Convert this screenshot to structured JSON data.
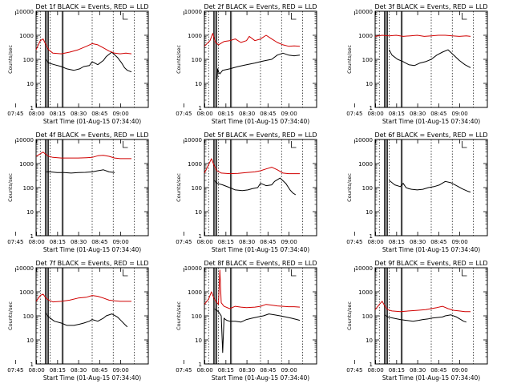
{
  "chart_data": [
    {
      "type": "line",
      "title": "Det 1f BLACK = Events, RED = LLD",
      "xlabel": "Start Time (01-Aug-15 07:34:40)",
      "ylabel": "Counts/sec",
      "xticks": [
        "07:45",
        "08:00",
        "08:15",
        "08:30",
        "08:45",
        "09:00"
      ],
      "yticks": [
        "1",
        "10",
        "100",
        "1000",
        "10000"
      ],
      "ylim": [
        1,
        10000
      ],
      "yscale": "log",
      "series": [
        {
          "name": "BLACK",
          "color": "#000000",
          "x": [
            7,
            9,
            13,
            18,
            22,
            27,
            31,
            34,
            38,
            40,
            44,
            48,
            50,
            54,
            58,
            61,
            63,
            65,
            68
          ],
          "y": [
            100,
            70,
            60,
            50,
            40,
            35,
            40,
            50,
            55,
            80,
            60,
            90,
            130,
            200,
            120,
            70,
            45,
            35,
            30
          ]
        },
        {
          "name": "RED",
          "color": "#d00000",
          "x": [
            0,
            3,
            5,
            7,
            9,
            12,
            18,
            24,
            30,
            36,
            40,
            44,
            48,
            52,
            56,
            60,
            64,
            68
          ],
          "y": [
            250,
            600,
            700,
            400,
            250,
            180,
            170,
            200,
            250,
            350,
            450,
            400,
            300,
            220,
            180,
            170,
            180,
            170
          ]
        }
      ]
    },
    {
      "type": "line",
      "title": "Det 2f BLACK = Events, RED = LLD",
      "xlabel": "Start Time (01-Aug-15 07:34:40)",
      "ylabel": "Counts/sec",
      "xticks": [
        "07:45",
        "08:00",
        "08:15",
        "08:30",
        "08:45",
        "09:00"
      ],
      "yticks": [
        "1",
        "10",
        "100",
        "1000",
        "10000"
      ],
      "ylim": [
        1,
        10000
      ],
      "yscale": "log",
      "series": [
        {
          "name": "BLACK",
          "color": "#000000",
          "x": [
            9,
            9.5,
            10,
            11,
            13,
            18,
            24,
            30,
            36,
            40,
            44,
            48,
            52,
            56,
            60,
            64,
            68
          ],
          "y": [
            15,
            40,
            30,
            25,
            35,
            40,
            50,
            60,
            70,
            80,
            90,
            100,
            150,
            180,
            150,
            140,
            150
          ]
        },
        {
          "name": "RED",
          "color": "#d00000",
          "x": [
            0,
            4,
            6,
            7,
            8,
            10,
            14,
            18,
            22,
            26,
            30,
            32,
            36,
            40,
            44,
            48,
            52,
            56,
            60,
            64,
            68
          ],
          "y": [
            350,
            600,
            1200,
            700,
            500,
            400,
            550,
            600,
            700,
            500,
            600,
            900,
            600,
            700,
            1000,
            700,
            500,
            400,
            350,
            360,
            350
          ]
        }
      ]
    },
    {
      "type": "line",
      "title": "Det 3f BLACK = Events, RED = LLD",
      "xlabel": "Start Time (01-Aug-15 07:34:40)",
      "ylabel": "Counts/sec",
      "xticks": [
        "07:45",
        "08:00",
        "08:15",
        "08:30",
        "08:45",
        "09:00"
      ],
      "yticks": [
        "1",
        "10",
        "100",
        "1000",
        "10000"
      ],
      "ylim": [
        1,
        10000
      ],
      "yscale": "log",
      "series": [
        {
          "name": "BLACK",
          "color": "#000000",
          "x": [
            10,
            12,
            16,
            20,
            24,
            28,
            32,
            36,
            40,
            44,
            48,
            52,
            56,
            60,
            64,
            68
          ],
          "y": [
            250,
            150,
            100,
            80,
            60,
            55,
            70,
            80,
            100,
            150,
            200,
            250,
            150,
            90,
            60,
            45
          ]
        },
        {
          "name": "RED",
          "color": "#d00000",
          "x": [
            0,
            5,
            10,
            15,
            20,
            25,
            30,
            35,
            40,
            45,
            50,
            55,
            60,
            65,
            68
          ],
          "y": [
            900,
            1000,
            950,
            1000,
            900,
            950,
            1000,
            900,
            950,
            1000,
            1000,
            950,
            900,
            950,
            900
          ]
        }
      ]
    },
    {
      "type": "line",
      "title": "Det 4f BLACK = Events, RED = LLD",
      "xlabel": "Start Time (01-Aug-15 07:34:40)",
      "ylabel": "Counts/sec",
      "xticks": [
        "07:45",
        "08:00",
        "08:15",
        "08:30",
        "08:45",
        "09:00"
      ],
      "yticks": [
        "1",
        "10",
        "100",
        "1000",
        "10000"
      ],
      "ylim": [
        1,
        10000
      ],
      "yscale": "log",
      "series": [
        {
          "name": "BLACK",
          "color": "#000000",
          "x": [
            7,
            10,
            15,
            20,
            25,
            30,
            35,
            40,
            44,
            48,
            52,
            56
          ],
          "y": [
            450,
            450,
            420,
            420,
            400,
            420,
            430,
            450,
            500,
            550,
            450,
            420
          ]
        },
        {
          "name": "RED",
          "color": "#d00000",
          "x": [
            0,
            5,
            7,
            9,
            12,
            18,
            24,
            30,
            36,
            40,
            44,
            48,
            52,
            56,
            60,
            64,
            68
          ],
          "y": [
            2000,
            3000,
            2400,
            2000,
            1800,
            1700,
            1700,
            1700,
            1750,
            1800,
            2100,
            2200,
            2000,
            1700,
            1600,
            1600,
            1600
          ]
        }
      ]
    },
    {
      "type": "line",
      "title": "Det 5f BLACK = Events, RED = LLD",
      "xlabel": "Start Time (01-Aug-15 07:34:40)",
      "ylabel": "Counts/sec",
      "xticks": [
        "07:45",
        "08:00",
        "08:15",
        "08:30",
        "08:45",
        "09:00"
      ],
      "yticks": [
        "1",
        "10",
        "100",
        "1000",
        "10000"
      ],
      "ylim": [
        1,
        10000
      ],
      "yscale": "log",
      "series": [
        {
          "name": "BLACK",
          "color": "#000000",
          "x": [
            7,
            9,
            13,
            18,
            22,
            27,
            31,
            34,
            38,
            40,
            44,
            48,
            50,
            54,
            58,
            61,
            63,
            65
          ],
          "y": [
            200,
            150,
            130,
            100,
            80,
            75,
            80,
            90,
            100,
            150,
            120,
            130,
            180,
            250,
            150,
            80,
            60,
            50
          ]
        },
        {
          "name": "RED",
          "color": "#d00000",
          "x": [
            0,
            3,
            5,
            7,
            9,
            12,
            18,
            24,
            30,
            36,
            40,
            44,
            48,
            52,
            56,
            60,
            64,
            68
          ],
          "y": [
            400,
            900,
            1600,
            800,
            500,
            400,
            380,
            390,
            420,
            450,
            500,
            600,
            700,
            550,
            400,
            380,
            380,
            380
          ]
        }
      ]
    },
    {
      "type": "line",
      "title": "Det 6f BLACK = Events, RED = LLD",
      "xlabel": "Start Time (01-Aug-15 07:34:40)",
      "ylabel": "Counts/sec",
      "xticks": [
        "07:45",
        "08:00",
        "08:15",
        "08:30",
        "08:45",
        "09:00"
      ],
      "yticks": [
        "1",
        "10",
        "100",
        "1000",
        "10000"
      ],
      "ylim": [
        1,
        10000
      ],
      "yscale": "log",
      "series": [
        {
          "name": "BLACK",
          "color": "#000000",
          "x": [
            10,
            14,
            18,
            20,
            22,
            24,
            26,
            30,
            34,
            38,
            42,
            46,
            50,
            54,
            58,
            62,
            66,
            68
          ],
          "y": [
            200,
            130,
            110,
            150,
            100,
            90,
            85,
            80,
            85,
            100,
            110,
            130,
            180,
            160,
            120,
            90,
            70,
            65
          ]
        }
      ]
    },
    {
      "type": "line",
      "title": "Det 7f BLACK = Events, RED = LLD",
      "xlabel": "Start Time (01-Aug-15 07:34:40)",
      "ylabel": "Counts/sec",
      "xticks": [
        "07:45",
        "08:00",
        "08:15",
        "08:30",
        "08:45",
        "09:00"
      ],
      "yticks": [
        "1",
        "10",
        "100",
        "1000",
        "10000"
      ],
      "ylim": [
        1,
        10000
      ],
      "yscale": "log",
      "series": [
        {
          "name": "BLACK",
          "color": "#000000",
          "x": [
            7,
            9,
            13,
            18,
            22,
            27,
            31,
            34,
            38,
            40,
            44,
            48,
            50,
            54,
            58,
            61,
            63,
            65
          ],
          "y": [
            130,
            90,
            60,
            50,
            40,
            40,
            45,
            50,
            60,
            70,
            60,
            80,
            100,
            120,
            90,
            60,
            45,
            35
          ]
        },
        {
          "name": "RED",
          "color": "#d00000",
          "x": [
            0,
            3,
            5,
            7,
            9,
            12,
            18,
            24,
            30,
            36,
            40,
            44,
            48,
            52,
            56,
            60,
            64,
            68
          ],
          "y": [
            400,
            700,
            800,
            550,
            450,
            380,
            400,
            450,
            550,
            600,
            700,
            650,
            550,
            450,
            420,
            400,
            400,
            400
          ]
        }
      ]
    },
    {
      "type": "line",
      "title": "Det 8f BLACK = Events, RED = LLD",
      "xlabel": "Start Time (01-Aug-15 07:34:40)",
      "ylabel": "Counts/sec",
      "xticks": [
        "07:45",
        "08:00",
        "08:15",
        "08:30",
        "08:45",
        "09:00"
      ],
      "yticks": [
        "1",
        "10",
        "100",
        "1000",
        "10000"
      ],
      "ylim": [
        1,
        10000
      ],
      "yscale": "log",
      "series": [
        {
          "name": "BLACK",
          "color": "#000000",
          "x": [
            7,
            10,
            12,
            13,
            14,
            15,
            16,
            18,
            22,
            26,
            30,
            34,
            38,
            42,
            46,
            50,
            54,
            58,
            62,
            66,
            68
          ],
          "y": [
            200,
            150,
            100,
            3,
            80,
            70,
            65,
            60,
            60,
            55,
            70,
            80,
            90,
            100,
            120,
            110,
            100,
            90,
            80,
            70,
            65
          ]
        },
        {
          "name": "RED",
          "color": "#d00000",
          "x": [
            0,
            3,
            5,
            7,
            9,
            10,
            11,
            12,
            14,
            18,
            22,
            26,
            30,
            36,
            40,
            44,
            48,
            52,
            56,
            60,
            64,
            68
          ],
          "y": [
            300,
            500,
            1000,
            500,
            350,
            300,
            8000,
            350,
            250,
            200,
            250,
            230,
            220,
            230,
            250,
            300,
            280,
            260,
            250,
            240,
            240,
            230
          ]
        }
      ]
    },
    {
      "type": "line",
      "title": "Det 9f BLACK = Events, RED = LLD",
      "xlabel": "Start Time (01-Aug-15 07:34:40)",
      "ylabel": "Counts/sec",
      "xticks": [
        "07:45",
        "08:00",
        "08:15",
        "08:30",
        "08:45",
        "09:00"
      ],
      "yticks": [
        "1",
        "10",
        "100",
        "1000",
        "10000"
      ],
      "ylim": [
        1,
        10000
      ],
      "yscale": "log",
      "series": [
        {
          "name": "BLACK",
          "color": "#000000",
          "x": [
            7,
            9,
            13,
            18,
            22,
            27,
            31,
            34,
            38,
            40,
            44,
            48,
            50,
            54,
            58,
            61,
            63,
            65
          ],
          "y": [
            110,
            90,
            80,
            70,
            65,
            60,
            65,
            70,
            75,
            80,
            85,
            90,
            100,
            110,
            90,
            70,
            60,
            55
          ]
        },
        {
          "name": "RED",
          "color": "#d00000",
          "x": [
            0,
            3,
            5,
            7,
            9,
            12,
            18,
            24,
            30,
            36,
            40,
            44,
            48,
            52,
            56,
            60,
            64,
            68
          ],
          "y": [
            180,
            300,
            400,
            250,
            180,
            160,
            150,
            160,
            170,
            180,
            200,
            220,
            250,
            200,
            170,
            160,
            150,
            150
          ]
        }
      ]
    }
  ]
}
